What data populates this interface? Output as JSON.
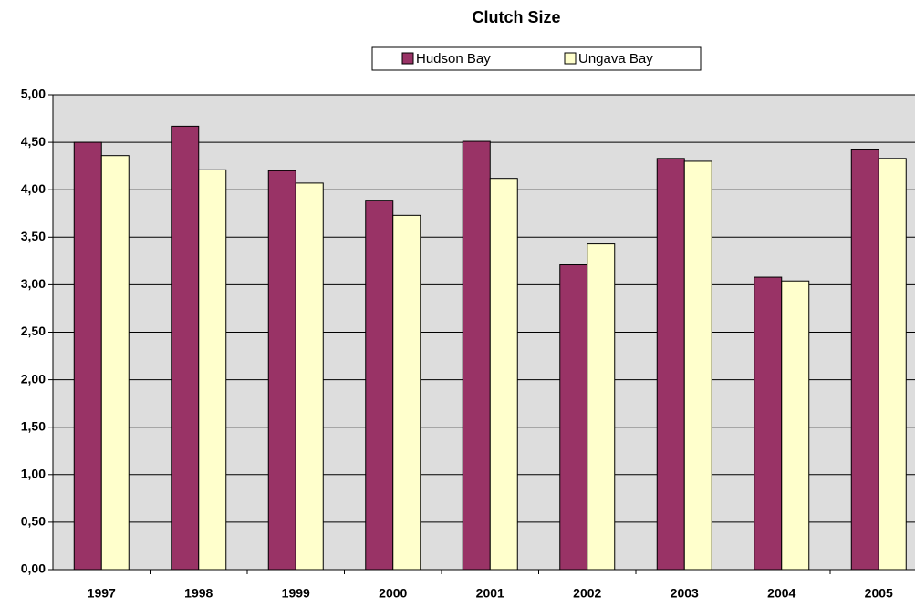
{
  "chart_data": {
    "type": "bar",
    "title": "Clutch Size",
    "categories": [
      "1997",
      "1998",
      "1999",
      "2000",
      "2001",
      "2002",
      "2003",
      "2004",
      "2005"
    ],
    "series": [
      {
        "name": "Hudson Bay",
        "color": "#993366",
        "values": [
          4.5,
          4.67,
          4.2,
          3.89,
          4.51,
          3.21,
          4.33,
          3.08,
          4.42
        ]
      },
      {
        "name": "Ungava Bay",
        "color": "#ffffcc",
        "values": [
          4.36,
          4.21,
          4.07,
          3.73,
          4.12,
          3.43,
          4.3,
          3.04,
          4.33
        ]
      }
    ],
    "ylim": [
      0,
      5
    ],
    "yticks": [
      {
        "value": 0,
        "label": "0,00"
      },
      {
        "value": 0.5,
        "label": "0,50"
      },
      {
        "value": 1,
        "label": "1,00"
      },
      {
        "value": 1.5,
        "label": "1,50"
      },
      {
        "value": 2,
        "label": "2,00"
      },
      {
        "value": 2.5,
        "label": "2,50"
      },
      {
        "value": 3,
        "label": "3,00"
      },
      {
        "value": 3.5,
        "label": "3,50"
      },
      {
        "value": 4,
        "label": "4,00"
      },
      {
        "value": 4.5,
        "label": "4,50"
      },
      {
        "value": 5,
        "label": "5,00"
      }
    ],
    "grid": true
  }
}
